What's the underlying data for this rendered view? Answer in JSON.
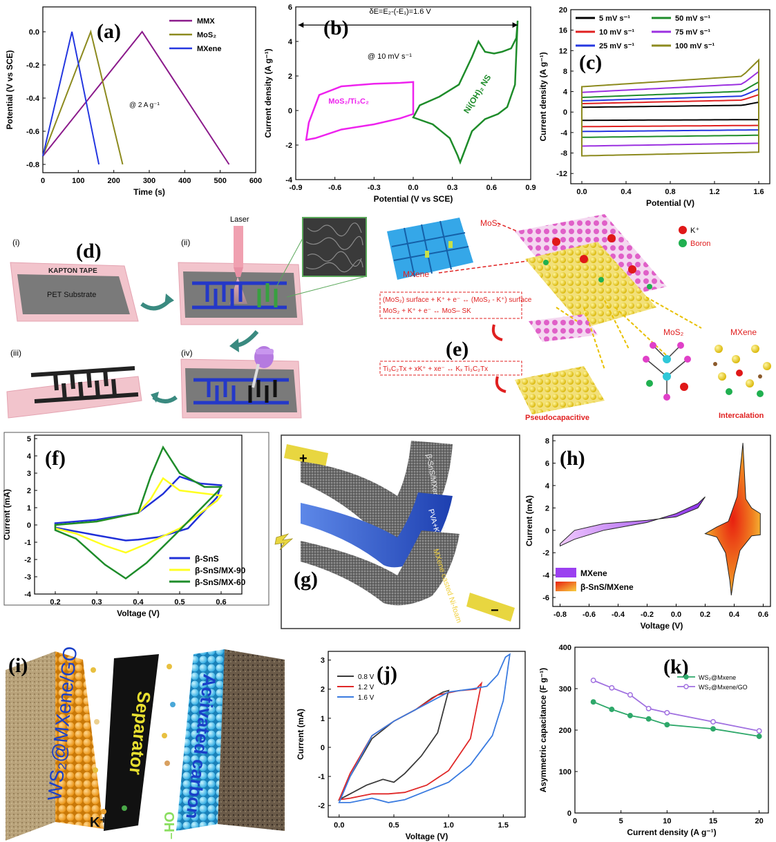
{
  "panel_labels": {
    "a": "(a)",
    "b": "(b)",
    "c": "(c)",
    "d": "(d)",
    "e": "(e)",
    "f": "(f)",
    "g": "(g)",
    "h": "(h)",
    "i": "(i)",
    "j": "(j)",
    "k": "(k)"
  },
  "chart_data": [
    {
      "id": "a",
      "type": "line",
      "xlabel": "Time (s)",
      "ylabel": "Potential (V vs SCE)",
      "xlim": [
        0,
        600
      ],
      "ylim": [
        -0.85,
        0.15
      ],
      "xticks": [
        0,
        100,
        200,
        300,
        400,
        500,
        600
      ],
      "yticks": [
        0.0,
        -0.2,
        -0.4,
        -0.6,
        -0.8
      ],
      "ytick_labels": [
        "0.0",
        "-0.2",
        "-0.4",
        "-0.6",
        "-0.8"
      ],
      "annotation": "@ 2 A g⁻¹",
      "legend_position": "top-right",
      "series": [
        {
          "name": "MMX",
          "color": "#8b1a8b",
          "x": [
            0,
            280,
            525
          ],
          "y": [
            -0.75,
            0.0,
            -0.8
          ]
        },
        {
          "name": "MoS₂",
          "color": "#8c8a1e",
          "x": [
            0,
            135,
            225
          ],
          "y": [
            -0.75,
            0.0,
            -0.8
          ]
        },
        {
          "name": "MXene",
          "color": "#2437e0",
          "x": [
            0,
            82,
            158
          ],
          "y": [
            -0.75,
            0.0,
            -0.8
          ]
        }
      ]
    },
    {
      "id": "b",
      "type": "line",
      "xlabel": "Potential (V vs SCE)",
      "ylabel": "Current density (A g⁻¹)",
      "xlim": [
        -0.9,
        0.9
      ],
      "ylim": [
        -4,
        6
      ],
      "xticks": [
        -0.9,
        -0.6,
        -0.3,
        0.0,
        0.3,
        0.6,
        0.9
      ],
      "xtick_labels": [
        "-0.9",
        "-0.6",
        "-0.3",
        "0.0",
        "0.3",
        "0.6",
        "0.9"
      ],
      "yticks": [
        -4,
        -2,
        0,
        2,
        4,
        6
      ],
      "annotation_top": "δE=E₂-(-E₁)=1.6 V",
      "annotation_rate": "@ 10 mV s⁻¹",
      "series": [
        {
          "name": "MoS₂/Ti₃C₂",
          "color": "#ee22ee",
          "x": [
            -0.82,
            -0.8,
            -0.72,
            -0.55,
            -0.3,
            -0.1,
            0.0,
            0.0,
            0.0,
            -0.1,
            -0.3,
            -0.55,
            -0.75,
            -0.82
          ],
          "y": [
            -1.7,
            -0.7,
            0.9,
            1.4,
            1.55,
            1.6,
            1.65,
            0.6,
            -0.2,
            -0.45,
            -0.8,
            -1.1,
            -1.6,
            -1.7
          ]
        },
        {
          "name": "Ni(OH)₂ NS",
          "color": "#1e8c2a",
          "x": [
            0.0,
            0.15,
            0.28,
            0.34,
            0.36,
            0.38,
            0.45,
            0.55,
            0.65,
            0.72,
            0.78,
            0.8,
            0.79,
            0.75,
            0.68,
            0.62,
            0.55,
            0.5,
            0.45,
            0.35,
            0.2,
            0.05,
            0.0
          ],
          "y": [
            -0.4,
            -0.8,
            -1.6,
            -2.6,
            -3.0,
            -2.6,
            -1.2,
            -0.5,
            -0.2,
            0.2,
            1.5,
            5.2,
            4.2,
            3.6,
            3.4,
            3.3,
            3.4,
            4.0,
            3.1,
            1.5,
            0.8,
            0.3,
            -0.4
          ]
        }
      ]
    },
    {
      "id": "c",
      "type": "line",
      "xlabel": "Potential (V)",
      "ylabel": "Current density (A g⁻¹)",
      "xlim": [
        -0.1,
        1.7
      ],
      "ylim": [
        -14,
        20
      ],
      "xticks": [
        0.0,
        0.4,
        0.8,
        1.2,
        1.6
      ],
      "xtick_labels": [
        "0.0",
        "0.4",
        "0.8",
        "1.2",
        "1.6"
      ],
      "yticks": [
        -12,
        -8,
        -4,
        0,
        4,
        8,
        12,
        16,
        20
      ],
      "legend_position": "top",
      "series": [
        {
          "name": "5 mV s⁻¹",
          "color": "#000000",
          "magnitude": 1.7
        },
        {
          "name": "10 mV s⁻¹",
          "color": "#e02020",
          "magnitude": 3.0
        },
        {
          "name": "25 mV s⁻¹",
          "color": "#2437e0",
          "magnitude": 4.0
        },
        {
          "name": "50 mV s⁻¹",
          "color": "#1e8c2a",
          "magnitude": 5.2
        },
        {
          "name": "75 mV s⁻¹",
          "color": "#9b30e0",
          "magnitude": 7.0
        },
        {
          "name": "100 mV s⁻¹",
          "color": "#8c8a1e",
          "magnitude": 9.0
        }
      ]
    },
    {
      "id": "f",
      "type": "line",
      "xlabel": "Voltage (V)",
      "ylabel": "Current (mA)",
      "xlim": [
        0.15,
        0.65
      ],
      "ylim": [
        -4,
        5.2
      ],
      "xticks": [
        0.2,
        0.3,
        0.4,
        0.5,
        0.6
      ],
      "xtick_labels": [
        "0.2",
        "0.3",
        "0.4",
        "0.5",
        "0.6"
      ],
      "yticks": [
        -4,
        -3,
        -2,
        -1,
        0,
        1,
        2,
        3,
        4,
        5
      ],
      "legend_position": "bottom-right",
      "series": [
        {
          "name": "β-SnS",
          "color": "#2030d8",
          "x": [
            0.2,
            0.3,
            0.4,
            0.46,
            0.5,
            0.55,
            0.6,
            0.59,
            0.52,
            0.45,
            0.4,
            0.37,
            0.3,
            0.2
          ],
          "y": [
            0.1,
            0.3,
            0.7,
            1.8,
            2.8,
            2.4,
            2.3,
            1.6,
            -0.2,
            -0.7,
            -0.85,
            -0.9,
            -0.6,
            -0.15
          ]
        },
        {
          "name": "β-SnS/MX-90",
          "color": "#ffff20",
          "x": [
            0.2,
            0.3,
            0.4,
            0.43,
            0.46,
            0.5,
            0.6,
            0.59,
            0.5,
            0.42,
            0.37,
            0.32,
            0.25,
            0.2
          ],
          "y": [
            0.0,
            0.2,
            0.7,
            1.5,
            2.7,
            2.0,
            1.7,
            1.4,
            -0.2,
            -1.1,
            -1.6,
            -1.2,
            -0.5,
            -0.2
          ]
        },
        {
          "name": "β-SnS/MX-60",
          "color": "#1e8c2a",
          "x": [
            0.2,
            0.3,
            0.4,
            0.43,
            0.46,
            0.5,
            0.56,
            0.6,
            0.59,
            0.5,
            0.42,
            0.37,
            0.32,
            0.25,
            0.2
          ],
          "y": [
            0.0,
            0.2,
            0.7,
            2.8,
            4.5,
            3.0,
            2.2,
            2.2,
            1.9,
            -0.3,
            -2.2,
            -3.1,
            -2.3,
            -0.8,
            -0.3
          ]
        }
      ]
    },
    {
      "id": "h",
      "type": "area",
      "xlabel": "Voltage (V)",
      "ylabel": "Current (mA)",
      "xlim": [
        -0.85,
        0.65
      ],
      "ylim": [
        -6.8,
        8.5
      ],
      "xticks": [
        -0.8,
        -0.6,
        -0.4,
        -0.2,
        0.0,
        0.2,
        0.4,
        0.6
      ],
      "xtick_labels": [
        "-0.8",
        "-0.6",
        "-0.4",
        "-0.2",
        "0.0",
        "0.2",
        "0.4",
        "0.6"
      ],
      "yticks": [
        -6,
        -4,
        -2,
        0,
        2,
        4,
        6,
        8
      ],
      "legend_position": "bottom-left",
      "series": [
        {
          "name": "MXene",
          "color": "#9b40f0",
          "x": [
            -0.8,
            -0.7,
            -0.5,
            -0.2,
            0.0,
            0.15,
            0.2,
            0.15,
            0.0,
            -0.2,
            -0.5,
            -0.7,
            -0.8
          ],
          "y": [
            -1.2,
            0.0,
            0.6,
            0.9,
            1.2,
            2.0,
            3.0,
            2.4,
            1.5,
            0.7,
            0.0,
            -0.8,
            -1.4
          ]
        },
        {
          "name": "β-SnS/MXene",
          "color": "#e8501a",
          "x": [
            0.2,
            0.28,
            0.34,
            0.37,
            0.38,
            0.4,
            0.44,
            0.52,
            0.58,
            0.58,
            0.52,
            0.48,
            0.46,
            0.45,
            0.42,
            0.36,
            0.28,
            0.2
          ],
          "y": [
            -0.3,
            -0.6,
            -2.0,
            -4.5,
            -5.8,
            -4.0,
            -1.8,
            -0.5,
            -0.4,
            1.5,
            2.0,
            2.8,
            7.8,
            6.5,
            3.0,
            0.8,
            0.3,
            -0.3
          ]
        }
      ]
    },
    {
      "id": "j",
      "type": "line",
      "xlabel": "Voltage (V)",
      "ylabel": "Current (mA)",
      "xlim": [
        -0.1,
        1.7
      ],
      "ylim": [
        -2.4,
        3.3
      ],
      "xticks": [
        0.0,
        0.5,
        1.0,
        1.5
      ],
      "xtick_labels": [
        "0.0",
        "0.5",
        "1.0",
        "1.5"
      ],
      "yticks": [
        -2,
        -1,
        0,
        1,
        2,
        3
      ],
      "legend_position": "top-left",
      "series": [
        {
          "name": "0.8 V",
          "color": "#3a3a3a",
          "x": [
            0.0,
            0.1,
            0.3,
            0.5,
            0.7,
            0.85,
            0.95,
            1.0,
            0.9,
            0.75,
            0.6,
            0.5,
            0.4,
            0.25,
            0.1,
            0.0
          ],
          "y": [
            -1.8,
            -1.0,
            0.3,
            0.9,
            1.3,
            1.7,
            1.9,
            1.95,
            0.5,
            -0.3,
            -0.9,
            -1.2,
            -1.1,
            -1.3,
            -1.6,
            -1.8
          ]
        },
        {
          "name": "1.2 V",
          "color": "#e02828",
          "x": [
            0.0,
            0.1,
            0.3,
            0.5,
            0.7,
            0.9,
            1.1,
            1.25,
            1.3,
            1.2,
            1.0,
            0.8,
            0.6,
            0.45,
            0.3,
            0.1,
            0.0
          ],
          "y": [
            -1.8,
            -0.9,
            0.4,
            0.9,
            1.3,
            1.8,
            1.95,
            2.0,
            2.2,
            0.3,
            -0.8,
            -1.3,
            -1.55,
            -1.6,
            -1.6,
            -1.75,
            -1.8
          ]
        },
        {
          "name": "1.6 V",
          "color": "#3a7be0",
          "x": [
            0.0,
            0.1,
            0.3,
            0.5,
            0.8,
            1.0,
            1.2,
            1.35,
            1.45,
            1.52,
            1.56,
            1.5,
            1.4,
            1.2,
            1.0,
            0.8,
            0.6,
            0.45,
            0.3,
            0.1,
            0.0
          ],
          "y": [
            -1.9,
            -1.0,
            0.4,
            0.9,
            1.5,
            1.9,
            2.0,
            2.1,
            2.5,
            3.1,
            3.2,
            1.6,
            0.4,
            -0.6,
            -1.2,
            -1.5,
            -1.8,
            -1.9,
            -1.75,
            -1.9,
            -1.9
          ]
        }
      ]
    },
    {
      "id": "k",
      "type": "line",
      "xlabel": "Current density (A g⁻¹)",
      "ylabel": "Asymmetric capacitance (F g⁻¹)",
      "xlim": [
        0,
        21
      ],
      "ylim": [
        0,
        400
      ],
      "xticks": [
        0,
        5,
        10,
        15,
        20
      ],
      "yticks": [
        0,
        100,
        200,
        300,
        400
      ],
      "legend_position": "top-right",
      "series": [
        {
          "name": "WS₂@Mxene",
          "color": "#2ea86a",
          "x": [
            2,
            4,
            6,
            8,
            10,
            15,
            20
          ],
          "y": [
            268,
            250,
            235,
            227,
            213,
            203,
            185
          ]
        },
        {
          "name": "WS₂@Mxene/GO",
          "color": "#a070e0",
          "x": [
            2,
            4,
            6,
            8,
            10,
            15,
            20
          ],
          "y": [
            320,
            302,
            285,
            252,
            242,
            220,
            198
          ]
        }
      ]
    }
  ],
  "panel_d": {
    "step_i": "(i)",
    "step_ii": "(ii)",
    "step_iii": "(iii)",
    "step_iv": "(iv)",
    "kapton": "KAPTON TAPE",
    "pet": "PET Substrate",
    "laser": "Laser"
  },
  "panel_e": {
    "mos2_top": "MoS₂",
    "mxene_top": "MXene",
    "legend_k": "K⁺",
    "legend_boron": "Boron",
    "eq1": "(MoS₂) surface + K⁺ + e⁻ ↔ (MoS₂ - K⁺) surface",
    "eq2": "MoS₂ + K⁺ + e⁻ ↔ MoS– SK",
    "eq3": "Ti₃C₂Tx + xK⁺ + xe⁻ ↔ Kₓ Ti₃C₂Tx",
    "pseudo": "Pseudocapacitive",
    "mos2_label": "MoS₂",
    "mxene_label": "MXene",
    "intercalation": "Intercalation"
  },
  "panel_g": {
    "top_layer": "β-SnS/MXene casted Ni-foam",
    "mid_layer": "PVA+KOH gel electrolyte",
    "bot_layer": "MXene casted Ni-foam",
    "plus": "+",
    "minus": "−"
  },
  "panel_i": {
    "left": "WS₂@MXene/GO",
    "middle": "Separator",
    "right": "Activated carbon",
    "kplus": "K⁺",
    "ohminus": "OH⁻"
  },
  "colors": {
    "axis": "#000000",
    "pink_substrate": "#f2c4cc",
    "gray_pet": "#7a7a7a",
    "electrode_blue": "#2438c8"
  }
}
